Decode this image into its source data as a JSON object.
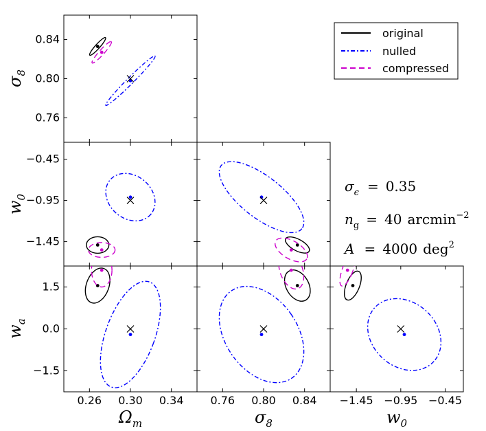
{
  "chart_data": {
    "type": "triangle-contour",
    "title": "",
    "parameters": [
      {
        "name": "omega_m",
        "label": "Ω",
        "sub": "m",
        "range": [
          0.235,
          0.365
        ],
        "ticks": [
          0.26,
          0.3,
          0.34
        ],
        "tick_labels": [
          "0.26",
          "0.30",
          "0.34"
        ]
      },
      {
        "name": "sigma_8",
        "label": "σ",
        "sub": "8",
        "range": [
          0.735,
          0.865
        ],
        "ticks": [
          0.76,
          0.8,
          0.84
        ],
        "tick_labels": [
          "0.76",
          "0.80",
          "0.84"
        ]
      },
      {
        "name": "w_0",
        "label": "w",
        "sub": "0",
        "range": [
          -1.745,
          -0.245
        ],
        "ticks": [
          -1.45,
          -0.95,
          -0.45
        ],
        "tick_labels": [
          "−1.45",
          "−0.95",
          "−0.45"
        ]
      },
      {
        "name": "w_a",
        "label": "w",
        "sub": "a",
        "range": [
          -2.25,
          2.25
        ],
        "ticks": [
          -1.5,
          0.0,
          1.5
        ],
        "tick_labels": [
          "−1.5",
          "0.0",
          "1.5"
        ]
      }
    ],
    "fiducial": {
      "omega_m": 0.3,
      "sigma_8": 0.8,
      "w_0": -0.95,
      "w_a": 0.0
    },
    "series": [
      {
        "name": "original",
        "color": "#000000",
        "style": "solid",
        "center": {
          "omega_m": 0.268,
          "sigma_8": 0.833,
          "w_0": -1.49,
          "w_a": 1.55
        },
        "ellipses": [
          {
            "panel": "sigma_8-omega_m",
            "w": 0.023,
            "h": 0.0045,
            "angle": -48
          },
          {
            "panel": "w_0-omega_m",
            "w": 0.022,
            "h": 0.2,
            "angle": 0
          },
          {
            "panel": "w_a-omega_m",
            "w": 0.022,
            "h": 1.3,
            "angle": 20
          },
          {
            "panel": "w_0-sigma_8",
            "w": 0.026,
            "h": 0.14,
            "angle": 28
          },
          {
            "panel": "w_a-sigma_8",
            "w": 0.022,
            "h": 1.2,
            "angle": -30
          },
          {
            "panel": "w_a-w_0",
            "w": 0.15,
            "h": 1.1,
            "angle": 22
          }
        ]
      },
      {
        "name": "nulled",
        "color": "#0000ff",
        "style": "dashdot",
        "center": {
          "omega_m": 0.3,
          "sigma_8": 0.798,
          "w_0": -0.91,
          "w_a": -0.2
        },
        "ellipses": [
          {
            "panel": "sigma_8-omega_m",
            "w": 0.068,
            "h": 0.0065,
            "angle": -45
          },
          {
            "panel": "w_0-omega_m",
            "w": 0.052,
            "h": 0.52,
            "angle": 40
          },
          {
            "panel": "w_a-omega_m",
            "w": 0.048,
            "h": 4.0,
            "angle": 20
          },
          {
            "panel": "w_0-sigma_8",
            "w": 0.1,
            "h": 0.5,
            "angle": 38
          },
          {
            "panel": "w_a-sigma_8",
            "w": 0.07,
            "h": 3.8,
            "angle": -35
          },
          {
            "panel": "w_a-w_0",
            "w": 0.9,
            "h": 2.3,
            "angle": 42
          }
        ]
      },
      {
        "name": "compressed",
        "color": "#cc00cc",
        "style": "dashed",
        "center": {
          "omega_m": 0.272,
          "sigma_8": 0.827,
          "w_0": -1.55,
          "w_a": 2.1
        },
        "ellipses": [
          {
            "panel": "sigma_8-omega_m",
            "w": 0.028,
            "h": 0.005,
            "angle": -48
          },
          {
            "panel": "w_0-omega_m",
            "w": 0.026,
            "h": 0.18,
            "angle": 0
          },
          {
            "panel": "w_a-omega_m",
            "w": 0.02,
            "h": 1.2,
            "angle": 0
          },
          {
            "panel": "w_0-sigma_8",
            "w": 0.035,
            "h": 0.22,
            "angle": 30
          },
          {
            "panel": "w_a-sigma_8",
            "w": 0.022,
            "h": 1.4,
            "angle": -20
          },
          {
            "panel": "w_a-w_0",
            "w": 0.12,
            "h": 1.2,
            "angle": 20
          }
        ]
      }
    ],
    "legend": {
      "position": "top-right",
      "entries": [
        {
          "label": "original",
          "color": "#000000",
          "style": "solid"
        },
        {
          "label": "nulled",
          "color": "#0000ff",
          "style": "dashdot"
        },
        {
          "label": "compressed",
          "color": "#cc00cc",
          "style": "dashed"
        }
      ]
    },
    "annotations": {
      "sigma_eps": {
        "symbol": "σ",
        "sub": "ϵ",
        "eq": "=",
        "value": "0.35"
      },
      "n_g": {
        "symbol": "n",
        "sub": "g",
        "eq": "=",
        "value": "40",
        "unit": "arcmin",
        "exp": "−2"
      },
      "area": {
        "symbol": "A",
        "eq": "=",
        "value": "4000",
        "unit": "deg",
        "exp": "2"
      }
    }
  }
}
